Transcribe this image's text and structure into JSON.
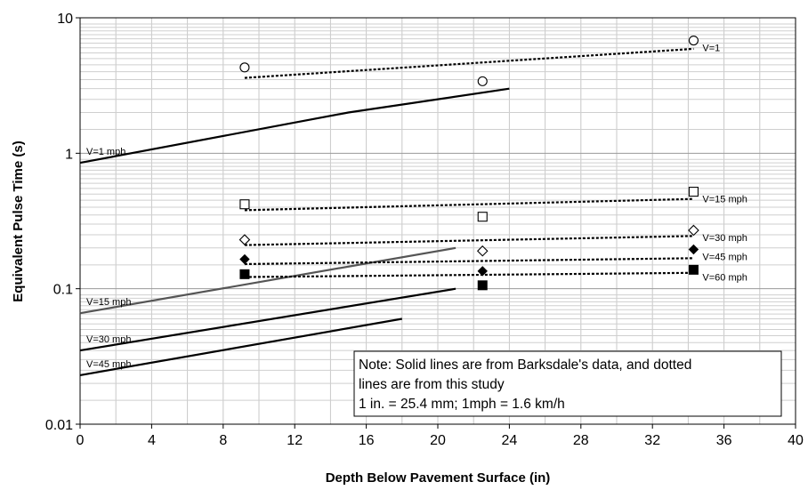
{
  "chart_data": {
    "type": "scatter",
    "xlabel": "Depth Below Pavement Surface (in)",
    "ylabel": "Equivalent Pulse Time (s)",
    "xlim": [
      0,
      40
    ],
    "ylim": [
      0.01,
      10
    ],
    "y_scale": "log",
    "grid": true,
    "x_ticks": [
      "0",
      "4",
      "8",
      "12",
      "16",
      "20",
      "24",
      "28",
      "32",
      "36",
      "40"
    ],
    "y_ticks": [
      "10",
      "1",
      "0.1",
      "0.01"
    ],
    "barksdale_lines": [
      {
        "label": "V=1 mph",
        "color": "#000000",
        "points": [
          [
            0,
            0.85
          ],
          [
            15,
            2.0
          ],
          [
            24,
            3.0
          ]
        ]
      },
      {
        "label": "V=15 mph",
        "color": "#555555",
        "points": [
          [
            0,
            0.066
          ],
          [
            21,
            0.2
          ]
        ]
      },
      {
        "label": "V=30 mph",
        "color": "#000000",
        "points": [
          [
            0,
            0.035
          ],
          [
            21,
            0.1
          ]
        ]
      },
      {
        "label": "V=45 mph",
        "color": "#000000",
        "points": [
          [
            0,
            0.023
          ],
          [
            18,
            0.06
          ]
        ]
      }
    ],
    "study_series": [
      {
        "label": "V=1",
        "marker": "circle-open",
        "points": [
          [
            9.2,
            4.3
          ],
          [
            22.5,
            3.4
          ],
          [
            34.3,
            6.8
          ]
        ],
        "trend": [
          [
            9.2,
            3.6
          ],
          [
            34.3,
            5.9
          ]
        ]
      },
      {
        "label": "V=15 mph",
        "marker": "square-open",
        "points": [
          [
            9.2,
            0.42
          ],
          [
            22.5,
            0.34
          ],
          [
            34.3,
            0.52
          ]
        ],
        "trend": [
          [
            9.2,
            0.38
          ],
          [
            34.3,
            0.46
          ]
        ]
      },
      {
        "label": "V=30 mph",
        "marker": "diamond-open",
        "points": [
          [
            9.2,
            0.23
          ],
          [
            22.5,
            0.19
          ],
          [
            34.3,
            0.27
          ]
        ],
        "trend": [
          [
            9.2,
            0.21
          ],
          [
            34.3,
            0.245
          ]
        ]
      },
      {
        "label": "V=45 mph",
        "marker": "diamond-filled",
        "points": [
          [
            9.2,
            0.165
          ],
          [
            22.5,
            0.135
          ],
          [
            34.3,
            0.195
          ]
        ],
        "trend": [
          [
            9.2,
            0.152
          ],
          [
            34.3,
            0.168
          ]
        ]
      },
      {
        "label": "V=60 mph",
        "marker": "square-filled",
        "points": [
          [
            9.2,
            0.128
          ],
          [
            22.5,
            0.106
          ],
          [
            34.3,
            0.138
          ]
        ],
        "trend": [
          [
            9.2,
            0.122
          ],
          [
            34.3,
            0.131
          ]
        ]
      }
    ],
    "note": {
      "line1": "Note: Solid lines are from Barksdale's data, and dotted",
      "line2": "lines are from this study",
      "line3": "1 in. =  25.4 mm; 1mph = 1.6 km/h"
    }
  }
}
